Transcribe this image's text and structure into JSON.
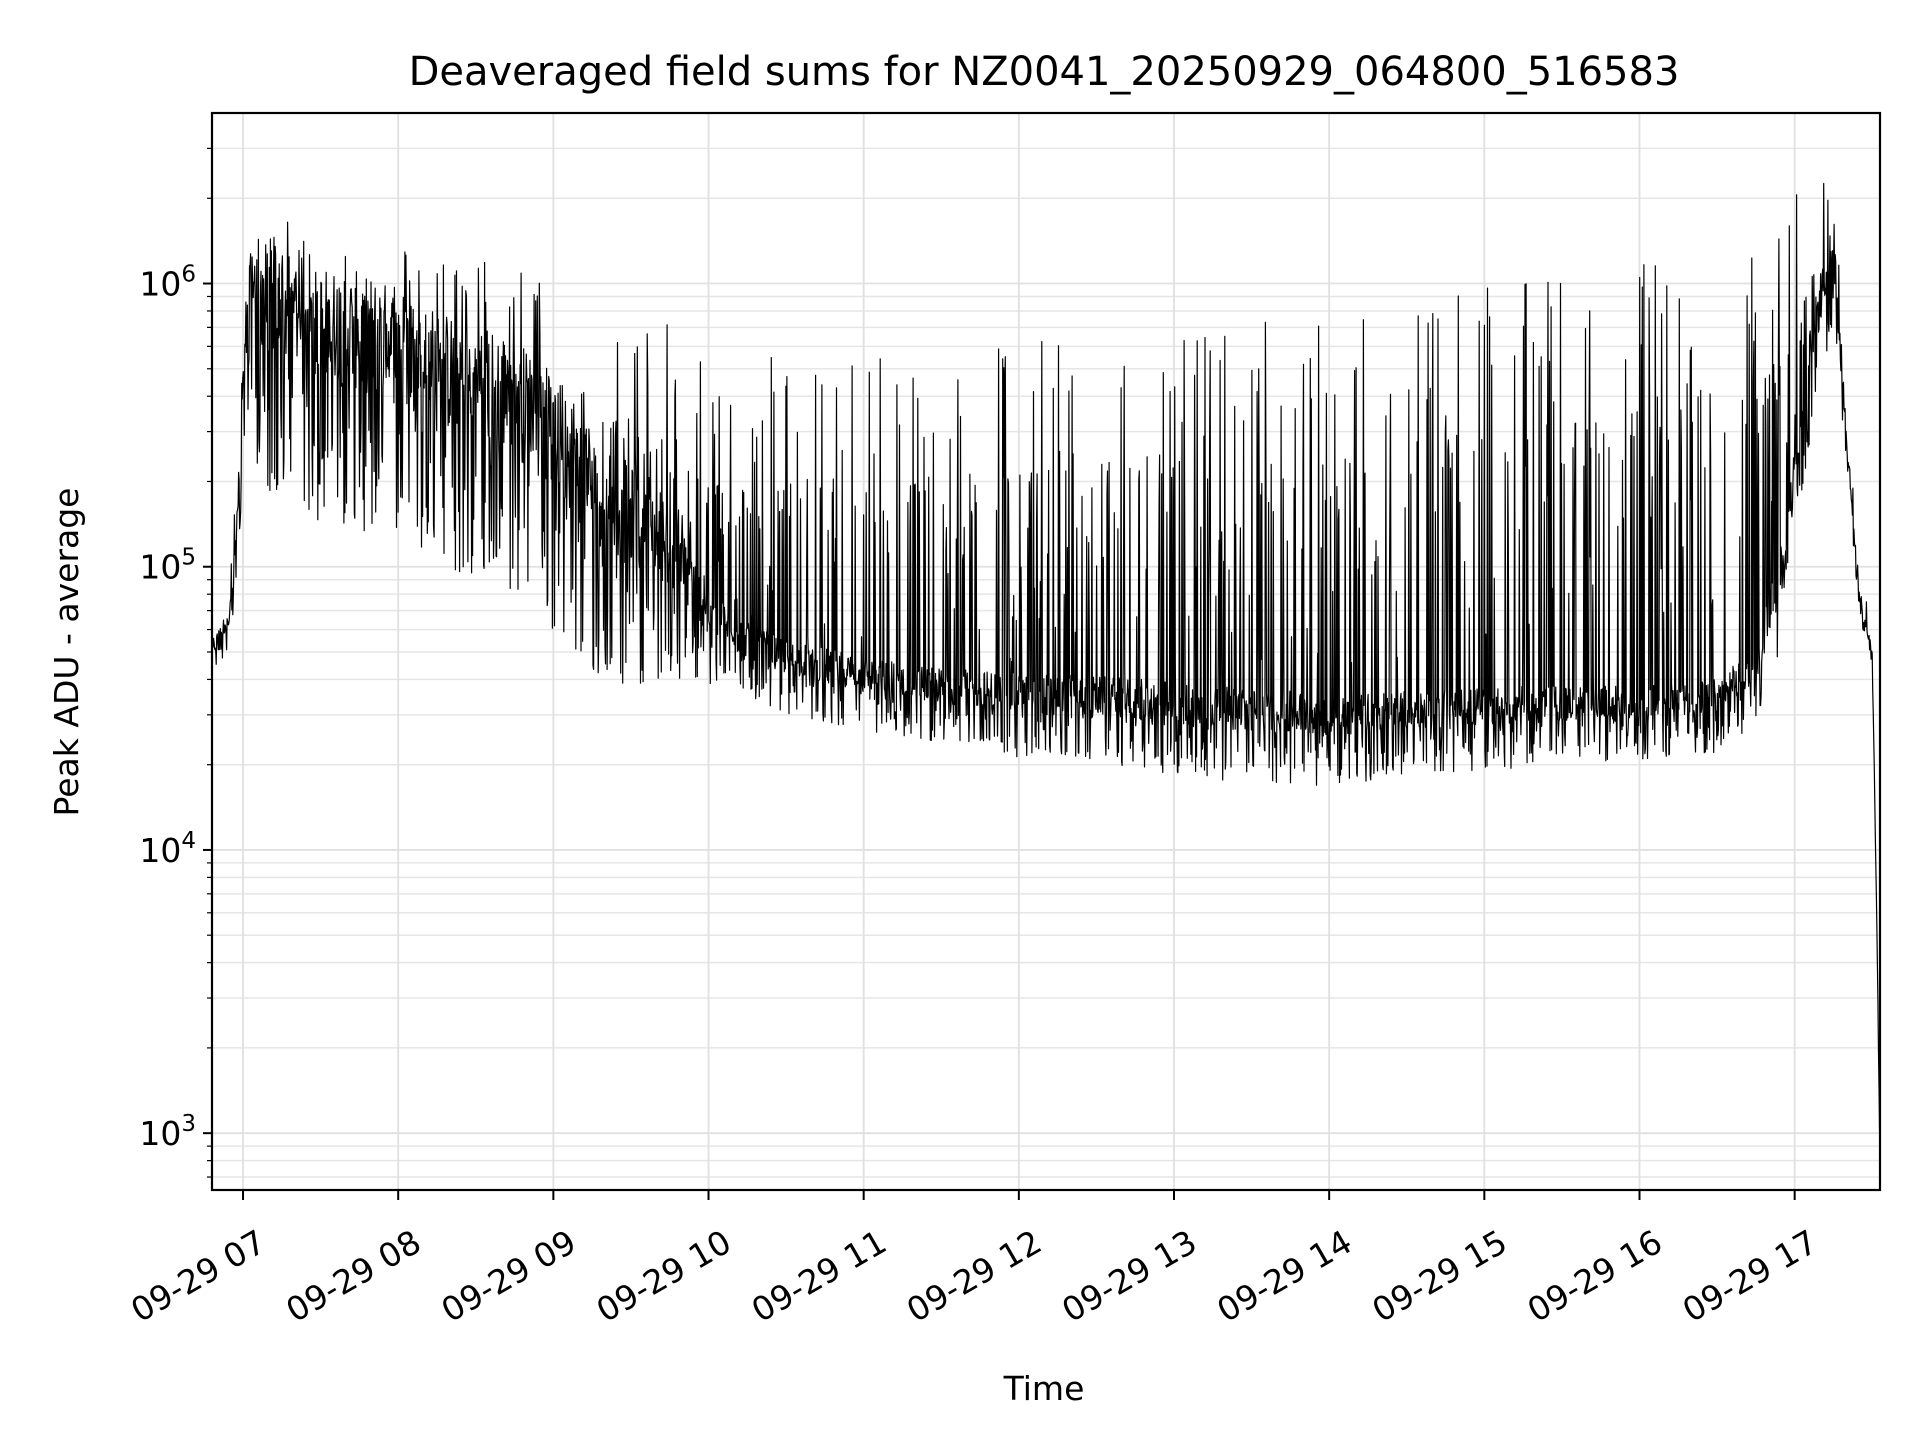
{
  "chart_data": {
    "type": "line",
    "title": "Deaveraged field sums for NZ0041_20250929_064800_516583",
    "xlabel": "Time",
    "ylabel": "Peak ADU - average",
    "yscale": "log",
    "ylim": [
      630,
      4000000
    ],
    "xlim": [
      "2025-09-29 06:48",
      "2025-09-29 17:33"
    ],
    "grid": true,
    "line_color": "#000000",
    "x_tick_labels": [
      "09-29 07",
      "09-29 08",
      "09-29 09",
      "09-29 10",
      "09-29 11",
      "09-29 12",
      "09-29 13",
      "09-29 14",
      "09-29 15",
      "09-29 16",
      "09-29 17"
    ],
    "x_ticks": [
      "2025-09-29 07:00",
      "2025-09-29 08:00",
      "2025-09-29 09:00",
      "2025-09-29 10:00",
      "2025-09-29 11:00",
      "2025-09-29 12:00",
      "2025-09-29 13:00",
      "2025-09-29 14:00",
      "2025-09-29 15:00",
      "2025-09-29 16:00",
      "2025-09-29 17:00"
    ],
    "y_ticks": [
      1000,
      10000,
      100000,
      1000000
    ],
    "y_tick_labels": [
      {
        "base": "10",
        "exp": "3"
      },
      {
        "base": "10",
        "exp": "4"
      },
      {
        "base": "10",
        "exp": "5"
      },
      {
        "base": "10",
        "exp": "6"
      }
    ],
    "series": [
      {
        "x": [
          "2025-09-29 06:48",
          "2025-09-29 06:52",
          "2025-09-29 06:55",
          "2025-09-29 06:58",
          "2025-09-29 07:00",
          "2025-09-29 07:02",
          "2025-09-29 07:10",
          "2025-09-29 07:20",
          "2025-09-29 07:30",
          "2025-09-29 07:40",
          "2025-09-29 07:50",
          "2025-09-29 08:00",
          "2025-09-29 08:15",
          "2025-09-29 08:30",
          "2025-09-29 08:45",
          "2025-09-29 09:00",
          "2025-09-29 09:15",
          "2025-09-29 09:30",
          "2025-09-29 09:45",
          "2025-09-29 10:00",
          "2025-09-29 10:15",
          "2025-09-29 10:30",
          "2025-09-29 11:00",
          "2025-09-29 11:30",
          "2025-09-29 12:00",
          "2025-09-29 12:30",
          "2025-09-29 13:00",
          "2025-09-29 13:30",
          "2025-09-29 14:00",
          "2025-09-29 14:30",
          "2025-09-29 15:00",
          "2025-09-29 15:30",
          "2025-09-29 16:00",
          "2025-09-29 16:30",
          "2025-09-29 16:45",
          "2025-09-29 16:55",
          "2025-09-29 17:05",
          "2025-09-29 17:10",
          "2025-09-29 17:15",
          "2025-09-29 17:20",
          "2025-09-29 17:25",
          "2025-09-29 17:30",
          "2025-09-29 17:32",
          "2025-09-29 17:33"
        ],
        "y": [
          50000,
          60000,
          70000,
          150000,
          400000,
          1000000,
          900000,
          800000,
          700000,
          700000,
          650000,
          600000,
          500000,
          450000,
          400000,
          300000,
          200000,
          150000,
          120000,
          70000,
          55000,
          48000,
          42000,
          38000,
          36000,
          35000,
          33000,
          31000,
          30000,
          31000,
          32000,
          33000,
          33000,
          35000,
          45000,
          100000,
          500000,
          900000,
          1200000,
          300000,
          80000,
          50000,
          4000,
          800
        ],
        "spread_low": [
          1.2,
          1.3,
          1.3,
          1.5,
          2.0,
          3.5,
          5.0,
          5.0,
          5.0,
          5.0,
          5.0,
          5.0,
          5.0,
          5.0,
          5.0,
          5.0,
          5.0,
          4.0,
          3.0,
          1.8,
          1.6,
          1.6,
          1.6,
          1.6,
          1.7,
          1.7,
          1.8,
          1.8,
          1.8,
          1.7,
          1.7,
          1.6,
          1.6,
          1.6,
          1.6,
          2.0,
          2.0,
          2.0,
          1.6,
          1.3,
          1.2,
          1.1,
          1.1,
          1.1
        ],
        "spread_high": [
          1.3,
          1.5,
          1.5,
          1.8,
          2.5,
          2.0,
          2.0,
          2.0,
          2.0,
          2.0,
          2.0,
          2.3,
          2.5,
          2.8,
          3.0,
          3.2,
          4.0,
          5.0,
          6.0,
          8.0,
          10.0,
          12.0,
          14.0,
          16.0,
          18.0,
          20.0,
          22.0,
          24.0,
          26.0,
          28.0,
          30.0,
          32.0,
          35.0,
          40.0,
          30.0,
          15.0,
          4.0,
          2.5,
          2.0,
          1.5,
          1.3,
          1.2,
          1.1,
          1.1
        ]
      }
    ]
  }
}
